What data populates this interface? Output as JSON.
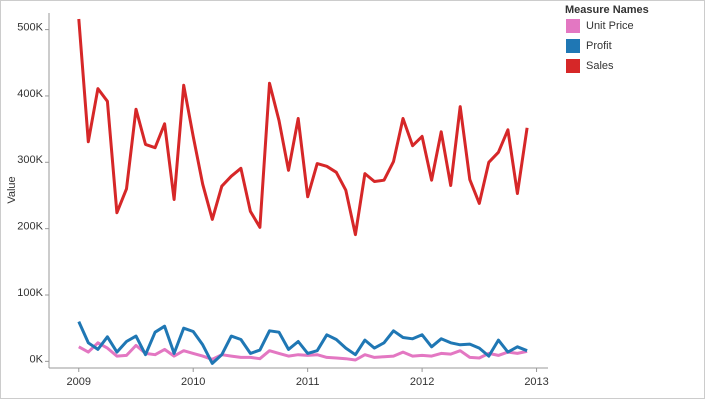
{
  "chart_data": {
    "type": "line",
    "y_label": "Value",
    "legend_title": "Measure Names",
    "legend": "right",
    "grid": false,
    "x": [
      2009,
      2009.083,
      2009.167,
      2009.25,
      2009.333,
      2009.417,
      2009.5,
      2009.583,
      2009.667,
      2009.75,
      2009.833,
      2009.917,
      2010,
      2010.083,
      2010.167,
      2010.25,
      2010.333,
      2010.417,
      2010.5,
      2010.583,
      2010.667,
      2010.75,
      2010.833,
      2010.917,
      2011,
      2011.083,
      2011.167,
      2011.25,
      2011.333,
      2011.417,
      2011.5,
      2011.583,
      2011.667,
      2011.75,
      2011.833,
      2011.917,
      2012,
      2012.083,
      2012.167,
      2012.25,
      2012.333,
      2012.417,
      2012.5,
      2012.583,
      2012.667,
      2012.75,
      2012.833,
      2012.917
    ],
    "xlim": [
      2008.74,
      2013.1
    ],
    "xticks": [
      2009,
      2010,
      2011,
      2012,
      2013
    ],
    "ylim": [
      -10000,
      525000
    ],
    "yticks": [
      {
        "value": 0,
        "label": "0K"
      },
      {
        "value": 100000,
        "label": "100K"
      },
      {
        "value": 200000,
        "label": "200K"
      },
      {
        "value": 300000,
        "label": "300K"
      },
      {
        "value": 400000,
        "label": "400K"
      },
      {
        "value": 500000,
        "label": "500K"
      }
    ],
    "series": [
      {
        "name": "Unit Price",
        "color": "#e377c2",
        "values": [
          22000,
          14000,
          28000,
          20000,
          8000,
          9000,
          24000,
          12000,
          10000,
          18000,
          8000,
          16000,
          12000,
          8000,
          3000,
          10000,
          8000,
          6000,
          6000,
          4000,
          16000,
          12000,
          8000,
          10000,
          9000,
          10000,
          6000,
          5000,
          4000,
          2000,
          10000,
          6000,
          7000,
          8000,
          14000,
          8000,
          9000,
          8000,
          12000,
          11000,
          16000,
          6000,
          5000,
          12000,
          9000,
          14000,
          12000,
          15000
        ]
      },
      {
        "name": "Profit",
        "color": "#1f77b4",
        "values": [
          60000,
          28000,
          18000,
          37000,
          14000,
          30000,
          38000,
          10000,
          44000,
          53000,
          12000,
          50000,
          45000,
          25000,
          -3000,
          10000,
          38000,
          33000,
          12000,
          17000,
          46000,
          44000,
          18000,
          30000,
          12000,
          16000,
          40000,
          33000,
          20000,
          10000,
          32000,
          20000,
          28000,
          46000,
          36000,
          34000,
          40000,
          22000,
          34000,
          28000,
          25000,
          26000,
          20000,
          8000,
          32000,
          14000,
          22000,
          16000
        ]
      },
      {
        "name": "Sales",
        "color": "#d62728",
        "values": [
          516000,
          331000,
          411000,
          392000,
          224000,
          260000,
          380000,
          327000,
          322000,
          358000,
          244000,
          416000,
          339000,
          267000,
          214000,
          264000,
          279000,
          291000,
          226000,
          202000,
          419000,
          363000,
          288000,
          366000,
          248000,
          298000,
          294000,
          285000,
          258000,
          191000,
          283000,
          271000,
          273000,
          301000,
          366000,
          325000,
          339000,
          273000,
          346000,
          265000,
          384000,
          274000,
          238000,
          300000,
          315000,
          349000,
          253000,
          352000
        ]
      }
    ]
  }
}
